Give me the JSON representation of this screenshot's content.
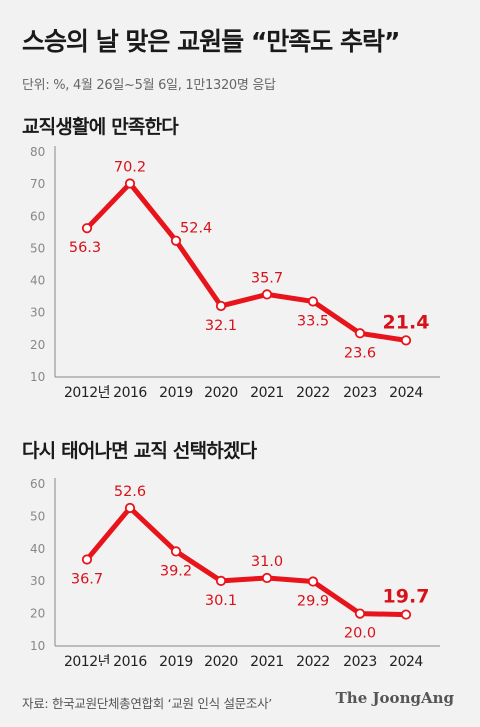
{
  "header": {
    "title": "스승의 날 맞은 교원들 “만족도 추락”",
    "subtitle": "단위: %, 4월 26일~5월 6일, 1만1320명 응답"
  },
  "chart_data": [
    {
      "type": "line",
      "title": "교직생활에 만족한다",
      "categories": [
        "2012년",
        "2016",
        "2019",
        "2020",
        "2021",
        "2022",
        "2023",
        "2024"
      ],
      "values": [
        56.3,
        70.2,
        52.4,
        32.1,
        35.7,
        33.5,
        23.6,
        21.4
      ],
      "yticks": [
        10,
        20,
        30,
        40,
        50,
        60,
        70,
        80
      ],
      "ylim": [
        10,
        80
      ],
      "grid": false,
      "highlight_last": true,
      "label_positions": [
        "below-left",
        "above",
        "above-right",
        "below",
        "above",
        "below",
        "below",
        "above"
      ]
    },
    {
      "type": "line",
      "title": "다시 태어나면 교직 선택하겠다",
      "categories": [
        "2012년",
        "2016",
        "2019",
        "2020",
        "2021",
        "2022",
        "2023",
        "2024"
      ],
      "values": [
        36.7,
        52.6,
        39.2,
        30.1,
        31.0,
        29.9,
        20.0,
        19.7
      ],
      "yticks": [
        10,
        20,
        30,
        40,
        50,
        60
      ],
      "ylim": [
        10,
        60
      ],
      "grid": false,
      "highlight_last": true,
      "label_positions": [
        "below",
        "above",
        "below",
        "below",
        "above",
        "below",
        "below",
        "above"
      ]
    }
  ],
  "footer": {
    "source": "자료: 한국교원단체총연합회 ‘교원 인식 설문조사’",
    "brand": "The JoongAng"
  },
  "colors": {
    "line": "#e8141c",
    "label": "#d8121a",
    "axis": "#888888",
    "tick_label": "#888888",
    "category_label": "#222222",
    "background": "#f2f2f2"
  }
}
